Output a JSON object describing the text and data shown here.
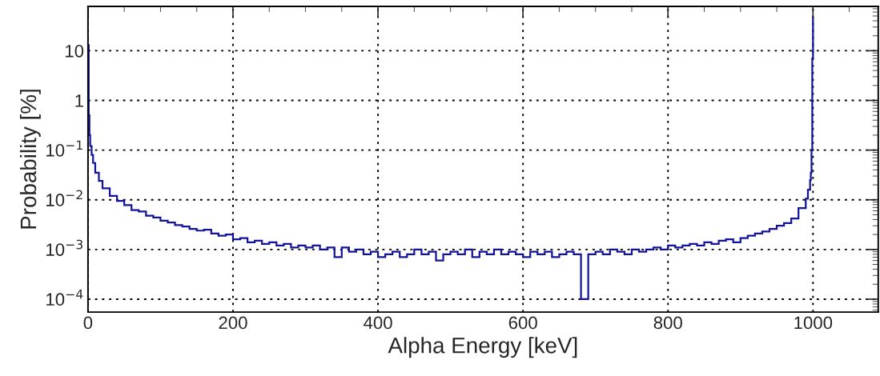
{
  "chart_data": {
    "type": "histogram",
    "xlabel": "Alpha Energy [keV]",
    "ylabel": "Probability [%]",
    "bins": [
      0,
      1,
      2,
      3,
      5,
      7,
      10,
      15,
      20,
      30,
      40,
      50,
      60,
      70,
      80,
      90,
      100,
      110,
      120,
      130,
      140,
      150,
      160,
      170,
      180,
      190,
      200,
      210,
      220,
      230,
      240,
      250,
      260,
      270,
      280,
      290,
      300,
      310,
      320,
      330,
      340,
      350,
      360,
      370,
      380,
      390,
      400,
      410,
      420,
      430,
      440,
      450,
      460,
      470,
      480,
      490,
      500,
      510,
      520,
      530,
      540,
      550,
      560,
      570,
      580,
      590,
      600,
      610,
      620,
      630,
      640,
      650,
      660,
      670,
      680,
      690,
      700,
      710,
      720,
      730,
      740,
      750,
      760,
      770,
      780,
      790,
      800,
      810,
      820,
      830,
      840,
      850,
      860,
      870,
      880,
      890,
      900,
      910,
      920,
      930,
      940,
      950,
      960,
      970,
      980,
      990,
      993,
      996,
      997,
      998,
      999,
      1000,
      1001
    ],
    "values": [
      13,
      0.5,
      0.2,
      0.12,
      0.08,
      0.055,
      0.035,
      0.024,
      0.017,
      0.012,
      0.0095,
      0.0078,
      0.0062,
      0.0058,
      0.0048,
      0.0044,
      0.0038,
      0.0035,
      0.0031,
      0.0029,
      0.0026,
      0.0024,
      0.0025,
      0.0021,
      0.0019,
      0.002,
      0.0016,
      0.0017,
      0.0014,
      0.0015,
      0.0013,
      0.0014,
      0.0012,
      0.0013,
      0.0011,
      0.0012,
      0.0011,
      0.0012,
      0.001,
      0.0011,
      0.0007,
      0.0011,
      0.0009,
      0.001,
      0.0008,
      0.0009,
      0.0007,
      0.0008,
      0.0009,
      0.0007,
      0.0008,
      0.001,
      0.0008,
      0.0009,
      0.0006,
      0.0008,
      0.0009,
      0.0008,
      0.001,
      0.0007,
      0.0009,
      0.0008,
      0.001,
      0.0008,
      0.0009,
      0.0008,
      0.0007,
      0.0009,
      0.0008,
      0.0009,
      0.0007,
      0.0008,
      0.0009,
      0.0008,
      0.0001,
      0.0008,
      0.0009,
      0.0008,
      0.001,
      0.0009,
      0.0008,
      0.001,
      0.0009,
      0.001,
      0.0011,
      0.001,
      0.0012,
      0.0011,
      0.0012,
      0.0013,
      0.0012,
      0.0014,
      0.0013,
      0.0015,
      0.0016,
      0.0014,
      0.0017,
      0.0019,
      0.0021,
      0.0023,
      0.0026,
      0.003,
      0.0034,
      0.0042,
      0.0068,
      0.0105,
      0.016,
      0.025,
      0.035,
      0.1,
      7,
      46
    ],
    "color": "#12129a",
    "xlim": [
      0,
      1090
    ],
    "ylim": [
      5.5e-05,
      78
    ],
    "xticks": [
      0,
      200,
      400,
      600,
      800,
      1000
    ],
    "yticks": [
      {
        "value": 0.0001,
        "label": "10$^{−4}$"
      },
      {
        "value": 0.001,
        "label": "10$^{−3}$"
      },
      {
        "value": 0.01,
        "label": "10$^{−2}$"
      },
      {
        "value": 0.1,
        "label": "10$^{−1}$"
      },
      1,
      10
    ],
    "log": "y",
    "grid": true
  }
}
